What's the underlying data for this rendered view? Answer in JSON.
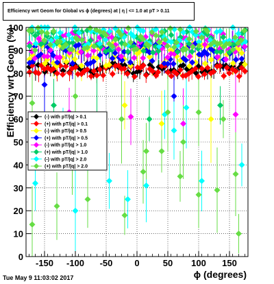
{
  "title": "Efficiency wrt Geom for Global vs ɸ (degrees) at | η | <= 1.0 at pT > 0.11",
  "footer": "Tue May  9 11:03:02 2017",
  "chart_data": {
    "type": "scatter",
    "xlabel": "ɸ (degrees)",
    "ylabel": "Efficiency wrt Geom (%)",
    "xlim": [
      -180,
      180
    ],
    "ylim": [
      0,
      100
    ],
    "xticks": [
      -150,
      -100,
      -50,
      0,
      50,
      100,
      150
    ],
    "yticks": [
      0,
      10,
      20,
      30,
      40,
      50,
      60,
      70,
      80,
      90,
      100
    ],
    "grid": true,
    "legend_position": "middle-left",
    "series": [
      {
        "name": "(-) with pT/|q| > 0.1",
        "color": "#000000",
        "marker": "diamond",
        "base": 82,
        "jitter": 2.5,
        "outliers": []
      },
      {
        "name": "(+) with pT/|q| > 0.1",
        "color": "#ff0000",
        "marker": "diamond",
        "base": 81,
        "jitter": 2.5,
        "outliers": []
      },
      {
        "name": "(-) with pT/|q| > 0.5",
        "color": "#ffff00",
        "marker": "diamond",
        "base": 88,
        "jitter": 5,
        "outliers": [
          [
            -170,
            62
          ],
          [
            -20,
            66
          ],
          [
            40,
            58
          ],
          [
            120,
            60
          ]
        ]
      },
      {
        "name": "(+) with pT/|q| > 0.5",
        "color": "#0000ff",
        "marker": "diamond",
        "base": 89,
        "jitter": 5,
        "outliers": [
          [
            -150,
            75
          ],
          [
            60,
            70
          ]
        ]
      },
      {
        "name": "(-) with pT/|q| > 1.0",
        "color": "#ff00ff",
        "marker": "diamond",
        "base": 92,
        "jitter": 6,
        "outliers": [
          [
            -110,
            63
          ],
          [
            -10,
            61
          ],
          [
            75,
            58
          ],
          [
            160,
            62
          ]
        ]
      },
      {
        "name": "(+) with pT/|q| > 1.0",
        "color": "#00cc66",
        "marker": "diamond",
        "base": 94,
        "jitter": 5,
        "outliers": [
          [
            -135,
            66
          ],
          [
            -65,
            62
          ],
          [
            20,
            60
          ],
          [
            135,
            66
          ]
        ]
      },
      {
        "name": "(-) with pT/|q| > 2.0",
        "color": "#00ffff",
        "marker": "diamond",
        "base": 96,
        "jitter": 5,
        "outliers": [
          [
            -165,
            32
          ],
          [
            -100,
            20
          ],
          [
            -45,
            33
          ],
          [
            -15,
            25
          ],
          [
            15,
            31
          ],
          [
            45,
            62
          ],
          [
            80,
            65
          ],
          [
            105,
            33
          ],
          [
            170,
            40
          ],
          [
            -120,
            55
          ],
          [
            -80,
            45
          ],
          [
            60,
            55
          ]
        ]
      },
      {
        "name": "(+) with pT/|q| > 2.0",
        "color": "#66dd44",
        "marker": "diamond",
        "base": 95,
        "jitter": 5,
        "outliers": [
          [
            -170,
            14
          ],
          [
            -170,
            67
          ],
          [
            -130,
            22
          ],
          [
            -105,
            43
          ],
          [
            -80,
            25
          ],
          [
            -20,
            18
          ],
          [
            -25,
            60
          ],
          [
            10,
            37
          ],
          [
            15,
            46
          ],
          [
            40,
            46
          ],
          [
            70,
            35
          ],
          [
            75,
            50
          ],
          [
            100,
            27
          ],
          [
            100,
            63
          ],
          [
            130,
            29
          ],
          [
            160,
            36
          ],
          [
            165,
            10
          ],
          [
            -100,
            70
          ],
          [
            50,
            63
          ],
          [
            140,
            60
          ]
        ]
      }
    ]
  }
}
